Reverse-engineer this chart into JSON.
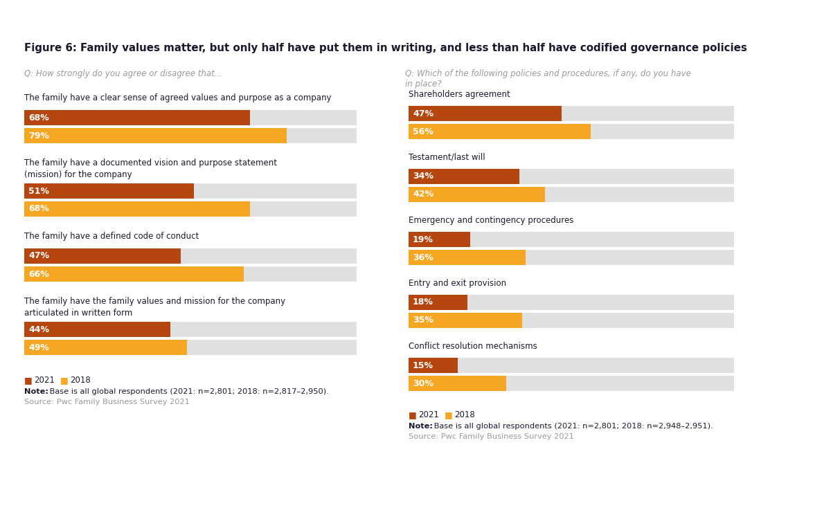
{
  "title": "Figure 6: Family values matter, but only half have put them in writing, and less than half have codified governance policies",
  "subtitle_left": "Q: How strongly do you agree or disagree that...",
  "subtitle_right": "Q: Which of the following policies and procedures, if any, do you have\nin place?",
  "left_groups": [
    {
      "label": "The family have a clear sense of agreed values and purpose as a company",
      "val_2021": 68,
      "val_2018": 79
    },
    {
      "label": "The family have a documented vision and purpose statement\n(mission) for the company",
      "val_2021": 51,
      "val_2018": 68
    },
    {
      "label": "The family have a defined code of conduct",
      "val_2021": 47,
      "val_2018": 66
    },
    {
      "label": "The family have the family values and mission for the company\narticulated in written form",
      "val_2021": 44,
      "val_2018": 49
    }
  ],
  "right_groups": [
    {
      "label": "Shareholders agreement",
      "val_2021": 47,
      "val_2018": 56
    },
    {
      "label": "Testament/last will",
      "val_2021": 34,
      "val_2018": 42
    },
    {
      "label": "Emergency and contingency procedures",
      "val_2021": 19,
      "val_2018": 36
    },
    {
      "label": "Entry and exit provision",
      "val_2021": 18,
      "val_2018": 35
    },
    {
      "label": "Conflict resolution mechanisms",
      "val_2021": 15,
      "val_2018": 30
    }
  ],
  "color_2021": "#b5460f",
  "color_2018": "#f5a623",
  "bar_bg_color": "#e0e0e0",
  "text_color_dark": "#1a1a2e",
  "text_color_gray": "#999999",
  "note_left": "Note: Base is all global respondents (2021: n=2,801; 2018: n=2,817–2,950).",
  "note_left_bold": "Note:",
  "source_left": "Source: Pwc Family Business Survey 2021",
  "note_right": "Note: Base is all global respondents (2021: n=2,801; 2018: n=2,948–2,951).",
  "note_right_bold": "Note:",
  "source_right": "Source: Pwc Family Business Survey 2021",
  "top_bar_color": "#1a1a5e",
  "orange_line_color": "#e07820",
  "background_color": "#ffffff"
}
